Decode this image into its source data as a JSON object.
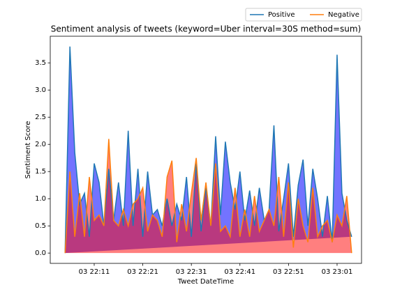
{
  "chart_data": {
    "type": "area",
    "title": "Sentiment analysis of tweets (keyword=Uber interval=30S method=sum)",
    "x_label": "Tweet DateTime",
    "y_label": "Sentiment Score",
    "x": [
      "03 22:05",
      "03 22:06",
      "03 22:07",
      "03 22:08",
      "03 22:09",
      "03 22:10",
      "03 22:11",
      "03 22:12",
      "03 22:13",
      "03 22:14",
      "03 22:15",
      "03 22:16",
      "03 22:17",
      "03 22:18",
      "03 22:19",
      "03 22:20",
      "03 22:21",
      "03 22:22",
      "03 22:23",
      "03 22:24",
      "03 22:25",
      "03 22:26",
      "03 22:27",
      "03 22:28",
      "03 22:29",
      "03 22:30",
      "03 22:31",
      "03 22:32",
      "03 22:33",
      "03 22:34",
      "03 22:35",
      "03 22:36",
      "03 22:37",
      "03 22:38",
      "03 22:39",
      "03 22:40",
      "03 22:41",
      "03 22:42",
      "03 22:43",
      "03 22:44",
      "03 22:45",
      "03 22:46",
      "03 22:47",
      "03 22:48",
      "03 22:49",
      "03 22:50",
      "03 22:51",
      "03 22:52",
      "03 22:53",
      "03 22:54",
      "03 22:55",
      "03 22:56",
      "03 22:57",
      "03 22:58",
      "03 22:59",
      "03 23:00",
      "03 23:01",
      "03 23:02",
      "03 23:03",
      "03 23:04"
    ],
    "series": [
      {
        "name": "Positive",
        "color": "#1f77b4",
        "fill": "#0000ff",
        "values": [
          0.0,
          3.8,
          1.85,
          0.9,
          1.1,
          0.3,
          1.65,
          1.3,
          0.5,
          1.55,
          0.6,
          1.3,
          0.5,
          2.25,
          0.5,
          1.55,
          0.3,
          1.5,
          0.7,
          0.8,
          0.5,
          1.0,
          0.5,
          0.9,
          0.6,
          1.4,
          0.3,
          1.65,
          0.4,
          1.2,
          0.5,
          2.15,
          0.7,
          2.05,
          1.3,
          0.8,
          1.5,
          0.6,
          1.15,
          0.5,
          1.2,
          0.6,
          0.8,
          2.35,
          0.4,
          1.0,
          1.65,
          0.3,
          1.25,
          1.72,
          0.5,
          1.55,
          1.0,
          0.3,
          1.05,
          0.2,
          3.65,
          1.1,
          0.6,
          0.3
        ]
      },
      {
        "name": "Negative",
        "color": "#ff7f0e",
        "fill": "#ff0000",
        "values": [
          0.0,
          1.5,
          0.3,
          1.1,
          0.3,
          1.4,
          0.6,
          0.7,
          0.5,
          2.1,
          0.6,
          0.5,
          0.8,
          0.5,
          0.9,
          1.0,
          1.2,
          0.4,
          0.7,
          0.6,
          0.3,
          1.4,
          1.7,
          0.2,
          0.9,
          0.4,
          1.1,
          1.75,
          0.6,
          1.3,
          0.5,
          1.65,
          0.4,
          0.5,
          0.3,
          1.2,
          0.3,
          0.8,
          0.3,
          1.05,
          0.4,
          0.6,
          0.8,
          0.5,
          1.4,
          0.3,
          1.3,
          0.1,
          1.0,
          0.5,
          0.2,
          1.2,
          0.3,
          0.5,
          0.6,
          0.2,
          0.7,
          0.5,
          1.05,
          0.0
        ]
      }
    ],
    "xlim": [
      "03 22:01:57",
      "03 23:06:02"
    ],
    "xticks": [
      "03 22:11",
      "03 22:21",
      "03 22:31",
      "03 22:41",
      "03 22:51",
      "03 23:01"
    ],
    "ylim": [
      -0.19,
      3.99
    ],
    "yticks": [
      {
        "value": 0,
        "label": "0.0"
      },
      0.5,
      {
        "value": 1,
        "label": "1.0"
      },
      1.5,
      {
        "value": 2,
        "label": "2.0"
      },
      2.5,
      {
        "value": 3,
        "label": "3.0"
      },
      3.5
    ],
    "legend": "upper right outside"
  }
}
